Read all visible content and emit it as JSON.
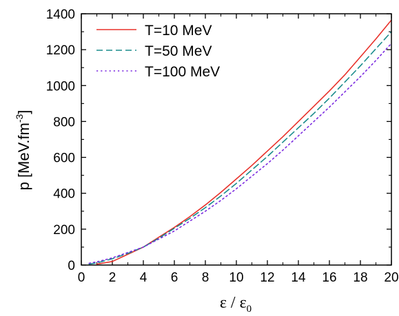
{
  "chart_data": {
    "type": "line",
    "xlabel": {
      "main": "ε / ε",
      "sub": "0"
    },
    "ylabel": {
      "main": "p [MeV.fm",
      "sup": "-3",
      "end": "]"
    },
    "xlim": [
      0,
      20
    ],
    "ylim": [
      0,
      1400
    ],
    "xticks": [
      0,
      2,
      4,
      6,
      8,
      10,
      12,
      14,
      16,
      18,
      20
    ],
    "yticks": [
      0,
      200,
      400,
      600,
      800,
      1000,
      1200,
      1400
    ],
    "grid": false,
    "legend": "top-left",
    "series": [
      {
        "name": "T=10 MeV",
        "color": "#e8312a",
        "dash": "solid",
        "x": [
          1,
          2,
          3,
          4,
          5,
          6,
          7,
          8,
          9,
          10,
          11,
          12,
          13,
          14,
          15,
          16,
          17,
          18,
          19,
          20
        ],
        "y": [
          5,
          20,
          60,
          100,
          155,
          210,
          270,
          335,
          405,
          480,
          555,
          635,
          715,
          800,
          885,
          970,
          1060,
          1160,
          1260,
          1365
        ]
      },
      {
        "name": "T=50 MeV",
        "color": "#1a8c8c",
        "dash": "dashed",
        "x": [
          0.5,
          1,
          2,
          3,
          4,
          5,
          6,
          7,
          8,
          9,
          10,
          11,
          12,
          13,
          14,
          15,
          16,
          17,
          18,
          19,
          20
        ],
        "y": [
          5,
          12,
          35,
          65,
          100,
          150,
          205,
          260,
          320,
          385,
          455,
          530,
          605,
          685,
          765,
          845,
          930,
          1020,
          1110,
          1205,
          1300
        ]
      },
      {
        "name": "T=100 MeV",
        "color": "#7b2be0",
        "dash": "dotted",
        "x": [
          0.5,
          1,
          2,
          3,
          4,
          5,
          6,
          7,
          8,
          9,
          10,
          11,
          12,
          13,
          14,
          15,
          16,
          17,
          18,
          19,
          20
        ],
        "y": [
          10,
          18,
          40,
          70,
          100,
          145,
          190,
          245,
          300,
          360,
          425,
          495,
          565,
          640,
          720,
          800,
          880,
          965,
          1050,
          1140,
          1235
        ]
      }
    ]
  }
}
